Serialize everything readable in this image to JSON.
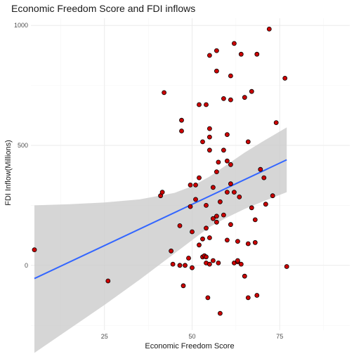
{
  "chart_data": {
    "type": "scatter",
    "title": "Economic Freedom Score and FDI inflows",
    "xlabel": "Economic Freedom Score",
    "ylabel": "FDI Inflow(Millions)",
    "xlim": [
      4,
      95
    ],
    "ylim": [
      -270,
      1030
    ],
    "x_ticks": [
      25,
      50,
      75
    ],
    "y_ticks": [
      0,
      500,
      1000
    ],
    "grid": true,
    "legend": "none",
    "colors": {
      "point_fill": "#cc0000",
      "point_stroke": "#000000",
      "fit_line": "#3366ff",
      "band": "#cccccc"
    },
    "points": [
      [
        5,
        65
      ],
      [
        26,
        -65
      ],
      [
        41,
        290
      ],
      [
        41.5,
        305
      ],
      [
        42,
        720
      ],
      [
        44,
        60
      ],
      [
        44.5,
        5
      ],
      [
        46.5,
        165
      ],
      [
        46.5,
        0
      ],
      [
        47,
        605
      ],
      [
        47,
        560
      ],
      [
        47.5,
        -85
      ],
      [
        48,
        0
      ],
      [
        49,
        30
      ],
      [
        49.5,
        245
      ],
      [
        49.5,
        335
      ],
      [
        50,
        140
      ],
      [
        50,
        -10
      ],
      [
        51,
        275
      ],
      [
        51,
        335
      ],
      [
        52,
        670
      ],
      [
        52,
        365
      ],
      [
        52,
        85
      ],
      [
        53,
        515
      ],
      [
        53,
        110
      ],
      [
        53,
        35
      ],
      [
        53.5,
        40
      ],
      [
        54,
        670
      ],
      [
        54,
        250
      ],
      [
        54,
        155
      ],
      [
        54,
        10
      ],
      [
        54,
        35
      ],
      [
        54.5,
        -135
      ],
      [
        55,
        875
      ],
      [
        55,
        570
      ],
      [
        55,
        535
      ],
      [
        55,
        480
      ],
      [
        55,
        115
      ],
      [
        55,
        5
      ],
      [
        56,
        325
      ],
      [
        56,
        195
      ],
      [
        56,
        20
      ],
      [
        57,
        895
      ],
      [
        57,
        810
      ],
      [
        57,
        390
      ],
      [
        57,
        205
      ],
      [
        57,
        180
      ],
      [
        57.5,
        10
      ],
      [
        57.5,
        430
      ],
      [
        58,
        265
      ],
      [
        58,
        -200
      ],
      [
        59,
        695
      ],
      [
        59,
        480
      ],
      [
        59,
        210
      ],
      [
        60,
        545
      ],
      [
        60,
        435
      ],
      [
        60,
        305
      ],
      [
        60,
        105
      ],
      [
        61,
        790
      ],
      [
        61,
        690
      ],
      [
        61,
        420
      ],
      [
        61,
        340
      ],
      [
        61,
        170
      ],
      [
        62,
        925
      ],
      [
        62,
        305
      ],
      [
        62,
        10
      ],
      [
        63,
        15
      ],
      [
        63,
        100
      ],
      [
        63,
        20
      ],
      [
        63.5,
        285
      ],
      [
        64,
        880
      ],
      [
        64,
        5
      ],
      [
        65,
        700
      ],
      [
        65,
        -45
      ],
      [
        66,
        515
      ],
      [
        66,
        90
      ],
      [
        66,
        -135
      ],
      [
        67,
        725
      ],
      [
        67,
        240
      ],
      [
        68,
        95
      ],
      [
        68,
        190
      ],
      [
        68.5,
        880
      ],
      [
        68.5,
        -125
      ],
      [
        69.5,
        400
      ],
      [
        70.5,
        365
      ],
      [
        71,
        255
      ],
      [
        72,
        985
      ],
      [
        73,
        290
      ],
      [
        74,
        595
      ],
      [
        76.5,
        780
      ],
      [
        77,
        -5
      ]
    ],
    "fit": {
      "x": [
        5,
        77
      ],
      "y": [
        -55,
        440
      ]
    },
    "band": {
      "x": [
        5,
        15,
        25,
        35,
        45,
        50,
        55,
        60,
        65,
        70,
        77
      ],
      "upper": [
        250,
        255,
        262,
        275,
        302,
        330,
        370,
        420,
        470,
        515,
        575
      ],
      "lower": [
        -365,
        -265,
        -165,
        -60,
        50,
        105,
        160,
        200,
        235,
        265,
        305
      ]
    }
  }
}
